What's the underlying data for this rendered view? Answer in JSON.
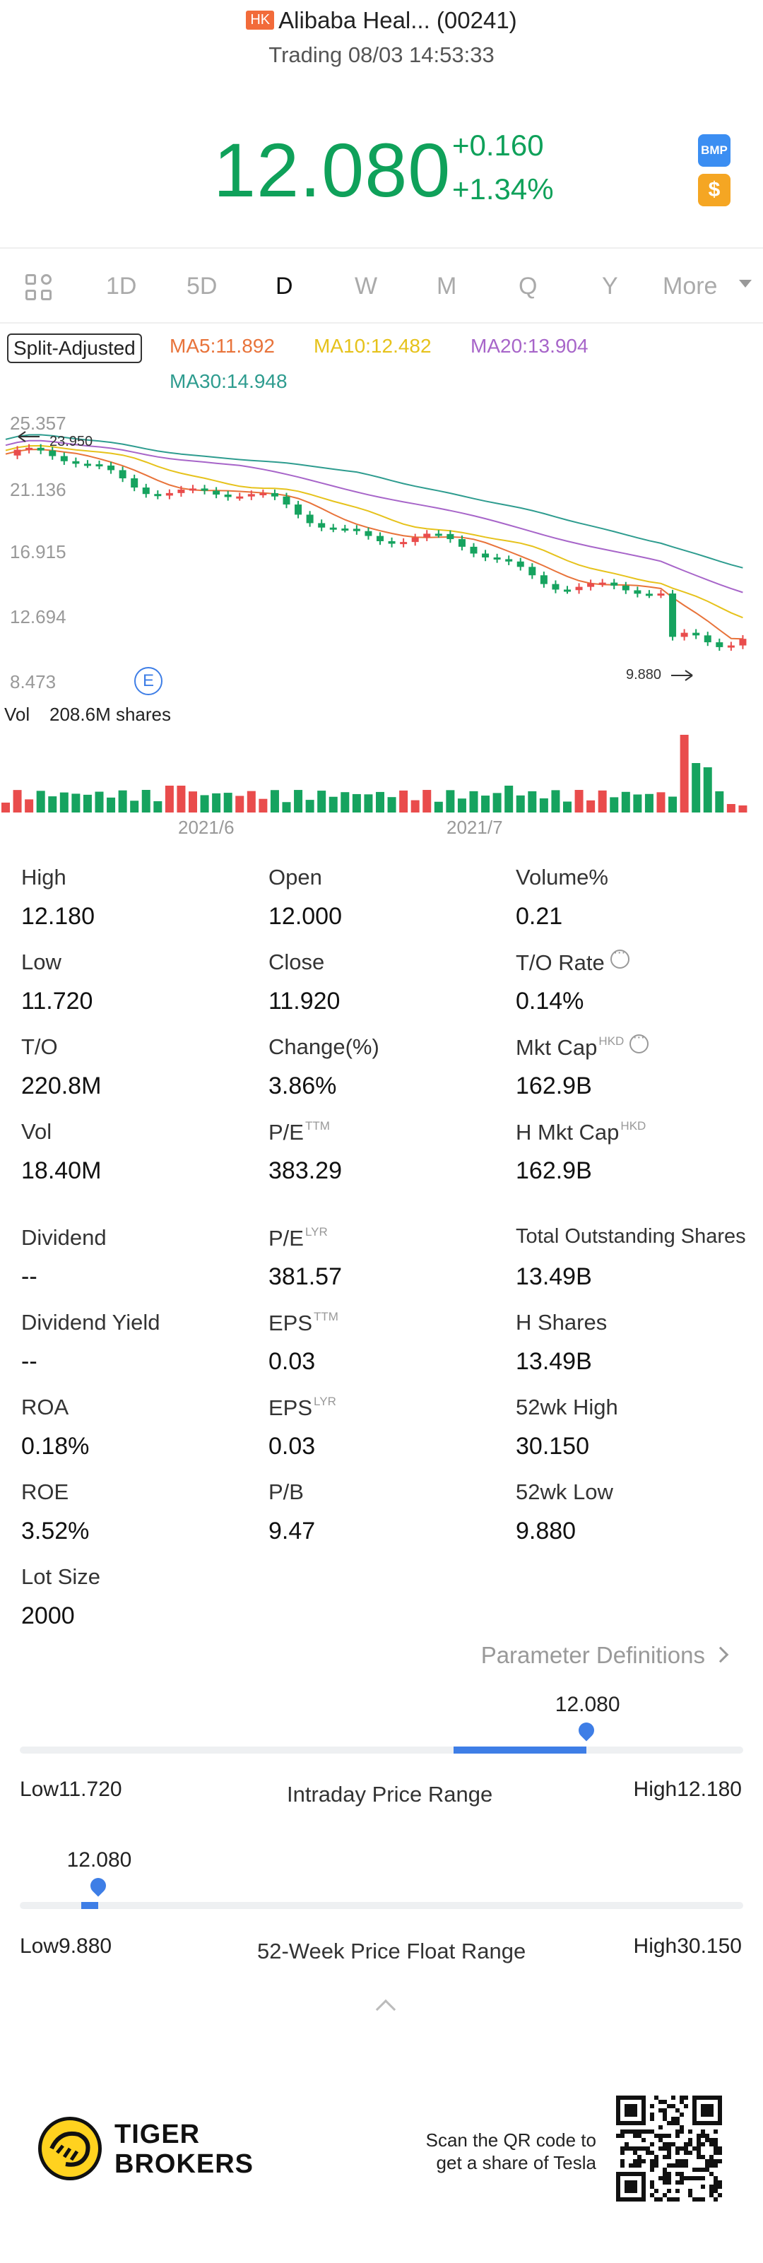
{
  "header": {
    "market_badge": "HK",
    "title": "Alibaba Heal... (00241)",
    "status": "Trading 08/03 14:53:33",
    "price": "12.080",
    "change": "+0.160",
    "change_pct": "+1.34%",
    "icons": [
      "bmp-icon",
      "dollar-icon"
    ],
    "bmp_label": "BMP",
    "dollar_label": "$"
  },
  "tabs": [
    {
      "label": "1D",
      "active": false
    },
    {
      "label": "5D",
      "active": false
    },
    {
      "label": "D",
      "active": true
    },
    {
      "label": "W",
      "active": false
    },
    {
      "label": "M",
      "active": false
    },
    {
      "label": "Q",
      "active": false
    },
    {
      "label": "Y",
      "active": false
    }
  ],
  "tabs_more": "More",
  "indicators": {
    "split_adjusted": "Split-Adjusted",
    "ma5": "MA5:11.892",
    "ma10": "MA10:12.482",
    "ma20": "MA20:13.904",
    "ma30": "MA30:14.948",
    "colors": {
      "ma5": "#e8733a",
      "ma10": "#e6c21b",
      "ma20": "#a765c9",
      "ma30": "#2e9c8f",
      "up": "#e94c4c",
      "down": "#16a35f"
    }
  },
  "chart_data": {
    "type": "candlestick",
    "y_ticks": [
      "25.357",
      "21.136",
      "16.915",
      "12.694",
      "8.473"
    ],
    "max_label": "23.950",
    "min_label": "9.880",
    "event_marker": "E",
    "volume_label": "Vol",
    "volume_value": "208.6M shares",
    "x_ticks": [
      "2021/6",
      "2021/7"
    ],
    "ylim": [
      8.473,
      25.357
    ],
    "grid": false
  },
  "stats": [
    {
      "label": "High",
      "value": "12.180"
    },
    {
      "label": "Open",
      "value": "12.000"
    },
    {
      "label": "Volume%",
      "value": "0.21"
    },
    {
      "label": "Low",
      "value": "11.720"
    },
    {
      "label": "Close",
      "value": "11.920"
    },
    {
      "label": "T/O Rate",
      "value": "0.14%"
    },
    {
      "label": "T/O",
      "value": "220.8M"
    },
    {
      "label": "Change(%)",
      "value": "3.86%"
    },
    {
      "label": "Mkt Cap",
      "sup": "HKD",
      "value": "162.9B"
    },
    {
      "label": "Vol",
      "value": "18.40M"
    },
    {
      "label": "P/E",
      "sup": "TTM",
      "value": "383.29"
    },
    {
      "label": "H Mkt Cap",
      "sup": "HKD",
      "value": "162.9B"
    },
    {
      "label": "Dividend",
      "value": "--"
    },
    {
      "label": "P/E",
      "sup": "LYR",
      "value": "381.57"
    },
    {
      "label": "Total Outstanding Shares",
      "value": "13.49B"
    },
    {
      "label": "Dividend Yield",
      "value": "--"
    },
    {
      "label": "EPS",
      "sup": "TTM",
      "value": "0.03"
    },
    {
      "label": "H Shares",
      "value": "13.49B"
    },
    {
      "label": "ROA",
      "value": "0.18%"
    },
    {
      "label": "EPS",
      "sup": "LYR",
      "value": "0.03"
    },
    {
      "label": "52wk High",
      "value": "30.150"
    },
    {
      "label": "ROE",
      "value": "3.52%"
    },
    {
      "label": "P/B",
      "value": "9.47"
    },
    {
      "label": "52wk Low",
      "value": "9.880"
    },
    {
      "label": "Lot Size",
      "value": "2000"
    }
  ],
  "param_definitions": "Parameter Definitions",
  "intraday_range": {
    "title": "Intraday Price Range",
    "current": "12.080",
    "low_label": "Low11.720",
    "high_label": "High12.180",
    "fraction": 0.783
  },
  "week52_range": {
    "title": "52-Week Price Float Range",
    "current": "12.080",
    "low_label": "Low9.880",
    "high_label": "High30.150",
    "fraction": 0.108
  },
  "footer": {
    "brand_line1": "TIGER",
    "brand_line2": "BROKERS",
    "scan_line1": "Scan the QR code to",
    "scan_line2": "get a share of Tesla"
  }
}
